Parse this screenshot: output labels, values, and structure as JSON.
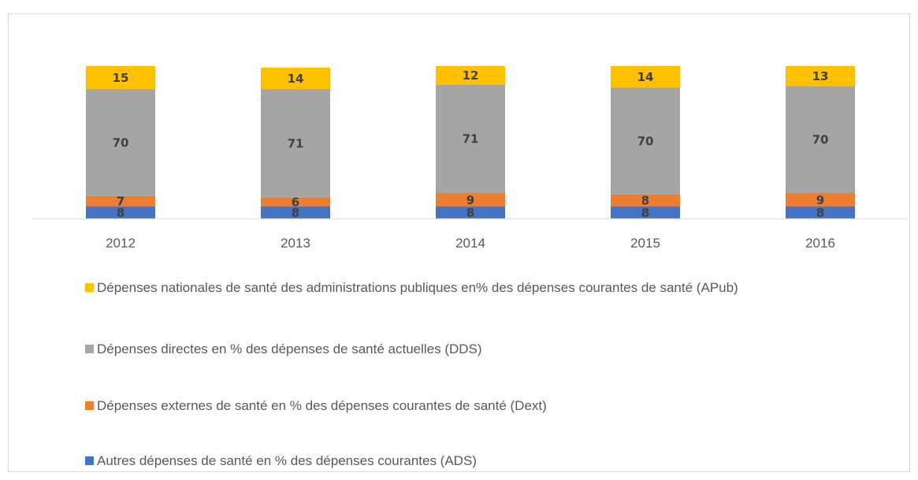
{
  "chart_data": {
    "type": "stacked_bar",
    "categories": [
      "2012",
      "2013",
      "2014",
      "2015",
      "2016"
    ],
    "ylim": [
      0,
      100
    ],
    "series": [
      {
        "name": "Autres dépenses de santé en % des dépenses courantes (ADS)",
        "color": "#4472c4",
        "values": [
          8,
          8,
          8,
          8,
          8
        ]
      },
      {
        "name": "Dépenses externes de santé en % des dépenses courantes de santé (Dext)",
        "color": "#ed7d31",
        "values": [
          7,
          6,
          9,
          8,
          9
        ]
      },
      {
        "name": "Dépenses directes en % des dépenses de santé actuelles (DDS)",
        "color": "#a5a5a5",
        "values": [
          70,
          71,
          71,
          70,
          70
        ]
      },
      {
        "name": "Dépenses nationales de santé des administrations publiques en% des dépenses courantes de santé (APub)",
        "color": "#ffc000",
        "values": [
          15,
          14,
          12,
          14,
          13
        ]
      }
    ]
  }
}
